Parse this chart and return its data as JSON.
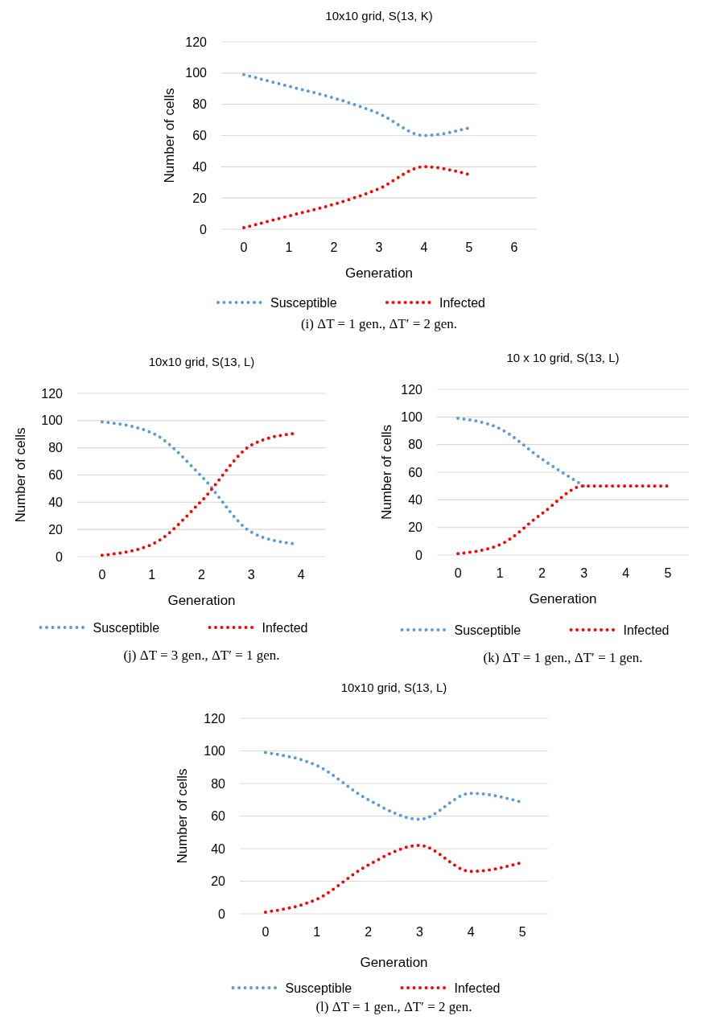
{
  "chart_data": [
    {
      "type": "line",
      "title": "10x10 grid, S(13, K)",
      "xlabel": "Generation",
      "ylabel": "Number of  cells",
      "x": [
        0,
        1,
        2,
        3,
        4,
        5
      ],
      "xlim": [
        -0.5,
        6.5
      ],
      "xticks": [
        0,
        1,
        2,
        3,
        4,
        5,
        6
      ],
      "ylim": [
        0,
        120
      ],
      "yticks": [
        0,
        20,
        40,
        60,
        80,
        100,
        120
      ],
      "grid": "y",
      "legend": "bottom",
      "line_style": "dotted",
      "annotations": [
        "(i) ΔT = 1 gen., ΔT′ = 2 gen."
      ],
      "series": [
        {
          "name": "Susceptible",
          "color": "#5b9bd5",
          "values": [
            99,
            91.5,
            84,
            74,
            60,
            65
          ]
        },
        {
          "name": "Infected",
          "color": "#ff0000",
          "values": [
            1,
            8.5,
            16,
            26,
            40,
            35
          ]
        }
      ]
    },
    {
      "type": "line",
      "title": "10x10 grid,  S(13, L)",
      "xlabel": "Generation",
      "ylabel": "Number of cells",
      "x": [
        0,
        1,
        2,
        3,
        3.85
      ],
      "xlim": [
        -0.5,
        4.5
      ],
      "xticks": [
        0,
        1,
        2,
        3,
        4
      ],
      "ylim": [
        0,
        120
      ],
      "yticks": [
        0,
        20,
        40,
        60,
        80,
        100,
        120
      ],
      "grid": "y",
      "legend": "bottom",
      "line_style": "dotted",
      "annotations": [
        "(j) ΔT = 3 gen., ΔT′ = 1 gen."
      ],
      "series": [
        {
          "name": "Susceptible",
          "color": "#5b9bd5",
          "values": [
            99,
            91,
            59,
            18,
            9.5
          ]
        },
        {
          "name": "Infected",
          "color": "#ff0000",
          "values": [
            1,
            9,
            41,
            82,
            90.5
          ]
        }
      ]
    },
    {
      "type": "line",
      "title": "10 x 10 grid, S(13, L)",
      "xlabel": "Generation",
      "ylabel": "Number of cells",
      "x": [
        0,
        1,
        2,
        3,
        4,
        5
      ],
      "xlim": [
        -0.5,
        5.5
      ],
      "xticks": [
        0,
        1,
        2,
        3,
        4,
        5
      ],
      "ylim": [
        0,
        120
      ],
      "yticks": [
        0,
        20,
        40,
        60,
        80,
        100,
        120
      ],
      "grid": "y",
      "legend": "bottom",
      "line_style": "dotted",
      "annotations": [
        "(k) ΔT = 1 gen., ΔT′ = 1 gen."
      ],
      "series": [
        {
          "name": "Susceptible",
          "color": "#5b9bd5",
          "values": [
            99,
            91.5,
            69.5,
            50,
            null,
            null
          ]
        },
        {
          "name": "Infected",
          "color": "#ff0000",
          "values": [
            1,
            7.5,
            30,
            50,
            50,
            50
          ]
        }
      ]
    },
    {
      "type": "line",
      "title": "10x10 grid, S(13, L)",
      "xlabel": "Generation",
      "ylabel": "Number of cells",
      "x": [
        0,
        1,
        2,
        3,
        4,
        5
      ],
      "xlim": [
        -0.5,
        5.5
      ],
      "xticks": [
        0,
        1,
        2,
        3,
        4,
        5
      ],
      "ylim": [
        0,
        120
      ],
      "yticks": [
        0,
        20,
        40,
        60,
        80,
        100,
        120
      ],
      "grid": "y",
      "legend": "bottom",
      "line_style": "dotted",
      "annotations": [
        "(l) ΔT = 1 gen., ΔT′ = 2 gen."
      ],
      "series": [
        {
          "name": "Susceptible",
          "color": "#5b9bd5",
          "values": [
            99,
            91,
            70,
            58,
            74,
            68.5
          ]
        },
        {
          "name": "Infected",
          "color": "#ff0000",
          "values": [
            1,
            9,
            30,
            42,
            26,
            31.5
          ]
        }
      ]
    }
  ]
}
